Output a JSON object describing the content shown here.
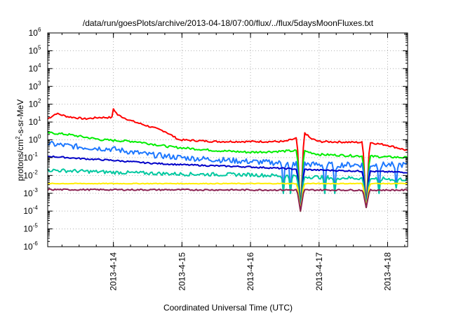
{
  "chart_data": {
    "type": "line",
    "title": "/data/run/goesPlots/archive/2013-04-18/07:00/flux/../flux/5daysMoonFluxes.txt",
    "xlabel": "Coordinated Universal Time (UTC)",
    "ylabel": "protons/cm2-s-sr-MeV",
    "ylabel_parts": {
      "pre": "protons/cm",
      "sup": "2",
      "post": "-s-sr-MeV"
    },
    "yscale": "log",
    "ylim_exp": [
      -6,
      6
    ],
    "y_tick_labels": [
      {
        "base": "10",
        "exp": "-6"
      },
      {
        "base": "10",
        "exp": "-5"
      },
      {
        "base": "10",
        "exp": "-4"
      },
      {
        "base": "10",
        "exp": "-3"
      },
      {
        "base": "10",
        "exp": "-2"
      },
      {
        "base": "10",
        "exp": "-1"
      },
      {
        "base": "10",
        "exp": "0"
      },
      {
        "base": "10",
        "exp": "1"
      },
      {
        "base": "10",
        "exp": "2"
      },
      {
        "base": "10",
        "exp": "3"
      },
      {
        "base": "10",
        "exp": "4"
      },
      {
        "base": "10",
        "exp": "5"
      },
      {
        "base": "10",
        "exp": "6"
      }
    ],
    "xlim": [
      "2013-04-13 01:00",
      "2013-04-18 07:00"
    ],
    "x_ticks": [
      {
        "label": "2013-4-14",
        "t": "2013-04-14 00:00"
      },
      {
        "label": "2013-4-15",
        "t": "2013-04-15 00:00"
      },
      {
        "label": "2013-4-16",
        "t": "2013-04-16 00:00"
      },
      {
        "label": "2013-4-17",
        "t": "2013-04-17 00:00"
      },
      {
        "label": "2013-4-18",
        "t": "2013-04-18 00:00"
      }
    ],
    "grid": true,
    "series": [
      {
        "color": "#ff0000",
        "noise": 0.05,
        "points": [
          [
            "2013-04-13 01:00",
            15
          ],
          [
            "2013-04-13 04:00",
            30
          ],
          [
            "2013-04-13 08:00",
            20
          ],
          [
            "2013-04-13 14:00",
            15
          ],
          [
            "2013-04-13 19:00",
            18
          ],
          [
            "2013-04-13 23:30",
            18
          ],
          [
            "2013-04-13 23:50",
            60
          ],
          [
            "2013-04-14 01:30",
            25
          ],
          [
            "2013-04-14 06:00",
            12
          ],
          [
            "2013-04-14 12:00",
            6
          ],
          [
            "2013-04-14 18:00",
            3
          ],
          [
            "2013-04-14 23:00",
            1
          ],
          [
            "2013-04-15 12:00",
            0.8
          ],
          [
            "2013-04-16 00:00",
            0.8
          ],
          [
            "2013-04-16 12:00",
            0.8
          ],
          [
            "2013-04-16 18:00",
            1.5
          ],
          [
            "2013-04-16 19:00",
            2.5
          ],
          [
            "2013-04-16 21:00",
            1.2
          ],
          [
            "2013-04-17 00:00",
            0.8
          ],
          [
            "2013-04-17 18:00",
            0.7
          ],
          [
            "2013-04-18 00:00",
            0.5
          ],
          [
            "2013-04-18 07:00",
            0.25
          ]
        ]
      },
      {
        "color": "#00ee00",
        "noise": 0.06,
        "points": [
          [
            "2013-04-13 01:00",
            2.5
          ],
          [
            "2013-04-13 08:00",
            2
          ],
          [
            "2013-04-13 20:00",
            1
          ],
          [
            "2013-04-14 08:00",
            0.8
          ],
          [
            "2013-04-14 20:00",
            0.4
          ],
          [
            "2013-04-15 12:00",
            0.25
          ],
          [
            "2013-04-16 00:00",
            0.2
          ],
          [
            "2013-04-16 18:00",
            0.25
          ],
          [
            "2013-04-17 00:00",
            0.15
          ],
          [
            "2013-04-18 07:00",
            0.1
          ]
        ]
      },
      {
        "color": "#1e78ff",
        "noise": 0.16,
        "points": [
          [
            "2013-04-13 01:00",
            0.6
          ],
          [
            "2013-04-13 12:00",
            0.4
          ],
          [
            "2013-04-14 00:00",
            0.3
          ],
          [
            "2013-04-14 12:00",
            0.15
          ],
          [
            "2013-04-15 00:00",
            0.1
          ],
          [
            "2013-04-16 00:00",
            0.06
          ],
          [
            "2013-04-17 00:00",
            0.04
          ],
          [
            "2013-04-18 07:00",
            0.04
          ]
        ]
      },
      {
        "color": "#0000c8",
        "noise": 0.04,
        "points": [
          [
            "2013-04-13 01:00",
            0.12
          ],
          [
            "2013-04-13 12:00",
            0.09
          ],
          [
            "2013-04-14 00:00",
            0.07
          ],
          [
            "2013-04-14 12:00",
            0.05
          ],
          [
            "2013-04-15 00:00",
            0.04
          ],
          [
            "2013-04-16 00:00",
            0.03
          ],
          [
            "2013-04-17 00:00",
            0.02
          ],
          [
            "2013-04-18 07:00",
            0.015
          ]
        ]
      },
      {
        "color": "#00c8a0",
        "noise": 0.1,
        "points": [
          [
            "2013-04-13 01:00",
            0.02
          ],
          [
            "2013-04-14 00:00",
            0.015
          ],
          [
            "2013-04-15 00:00",
            0.012
          ],
          [
            "2013-04-16 00:00",
            0.011
          ],
          [
            "2013-04-17 00:00",
            0.008
          ],
          [
            "2013-04-18 07:00",
            0.006
          ]
        ]
      },
      {
        "color": "#ffee00",
        "noise": 0.02,
        "points": [
          [
            "2013-04-13 01:00",
            0.0035
          ],
          [
            "2013-04-18 07:00",
            0.0035
          ]
        ]
      },
      {
        "color": "#8b2252",
        "noise": 0.04,
        "points": [
          [
            "2013-04-13 01:00",
            0.0016
          ],
          [
            "2013-04-18 07:00",
            0.0015
          ]
        ]
      }
    ],
    "dips": [
      {
        "t": "2013-04-16 17:30",
        "w_hours": 1.2,
        "y": 0.0001,
        "series": [
          0,
          1,
          2,
          3,
          4,
          5,
          6
        ]
      },
      {
        "t": "2013-04-17 16:30",
        "w_hours": 1.2,
        "y": 0.00016,
        "series": [
          0,
          1,
          2,
          3,
          4,
          5,
          6
        ]
      },
      {
        "t": "2013-04-16 11:30",
        "w_hours": 0.6,
        "y": 0.001,
        "series": [
          2,
          4
        ]
      },
      {
        "t": "2013-04-16 14:00",
        "w_hours": 0.6,
        "y": 0.001,
        "series": [
          2,
          4
        ]
      },
      {
        "t": "2013-04-17 02:00",
        "w_hours": 0.6,
        "y": 0.001,
        "series": [
          2,
          4
        ]
      },
      {
        "t": "2013-04-17 05:30",
        "w_hours": 0.6,
        "y": 0.001,
        "series": [
          2,
          4
        ]
      },
      {
        "t": "2013-04-17 21:00",
        "w_hours": 0.6,
        "y": 0.001,
        "series": [
          2,
          4
        ]
      },
      {
        "t": "2013-04-18 03:00",
        "w_hours": 0.6,
        "y": 0.002,
        "series": [
          2,
          4
        ]
      }
    ]
  }
}
